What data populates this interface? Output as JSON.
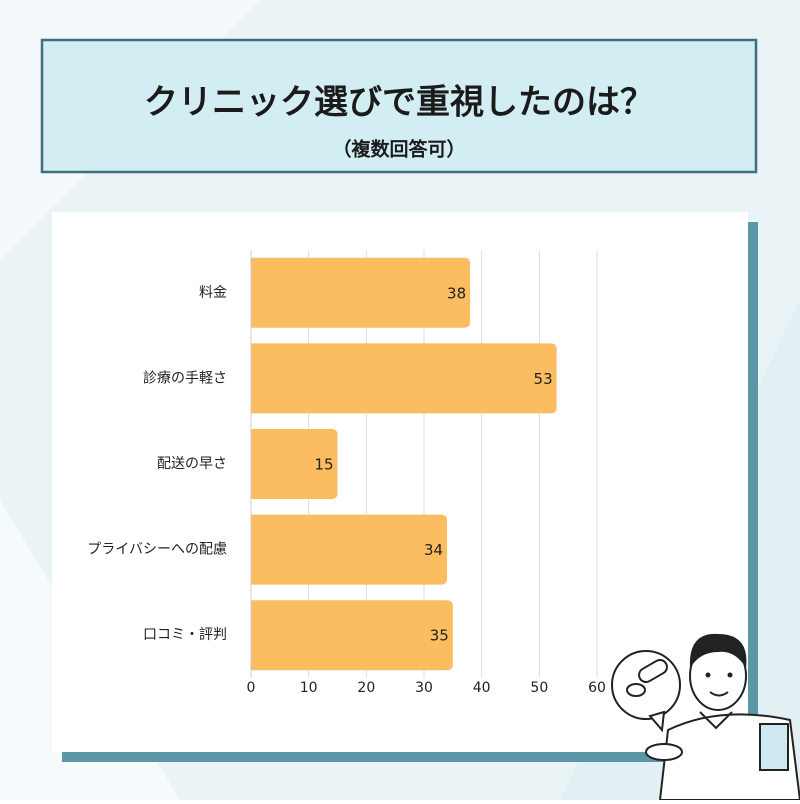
{
  "chart_data": {
    "type": "bar",
    "orientation": "horizontal",
    "title": "クリニック選びで重視したのは？",
    "subtitle": "（複数回答可）",
    "categories": [
      "料金",
      "診療の手軽さ",
      "配送の早さ",
      "プライバシーへの配慮",
      "口コミ・評判"
    ],
    "values": [
      38,
      53,
      15,
      34,
      35
    ],
    "color": "#fbbd5f",
    "xlim": [
      0,
      60
    ],
    "xticks": [
      0,
      10,
      20,
      30,
      40,
      50,
      60
    ],
    "grid": true
  }
}
